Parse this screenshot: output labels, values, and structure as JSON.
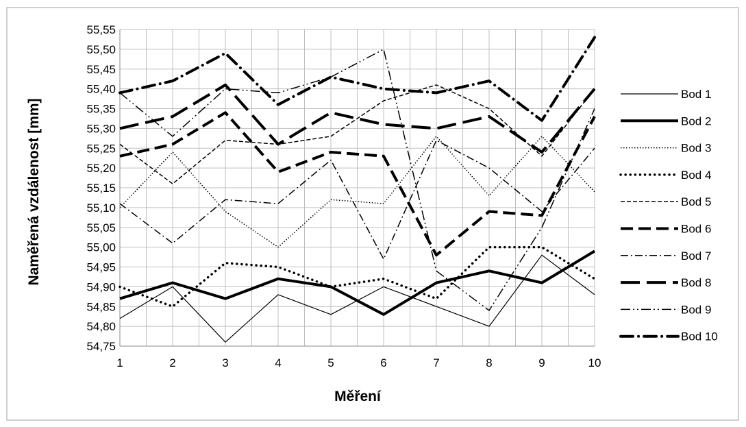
{
  "chart_data": {
    "type": "line",
    "title": "",
    "xlabel": "Měření",
    "ylabel": "Naměřená vzdálenost [mm]",
    "x": [
      1,
      2,
      3,
      4,
      5,
      6,
      7,
      8,
      9,
      10
    ],
    "ylim": [
      54.75,
      55.55
    ],
    "ytick_step": 0.05,
    "ytick_labels": [
      "54,75",
      "54,80",
      "54,85",
      "54,90",
      "54,95",
      "55,00",
      "55,05",
      "55,10",
      "55,15",
      "55,20",
      "55,25",
      "55,30",
      "55,35",
      "55,40",
      "55,45",
      "55,50",
      "55,55"
    ],
    "xtick_labels": [
      "1",
      "2",
      "3",
      "4",
      "5",
      "6",
      "7",
      "8",
      "9",
      "10"
    ],
    "grid": true,
    "legend_position": "right",
    "series": [
      {
        "name": "Bod 1",
        "values": [
          54.82,
          54.9,
          54.76,
          54.88,
          54.83,
          54.9,
          54.85,
          54.8,
          54.98,
          54.88
        ]
      },
      {
        "name": "Bod 2",
        "values": [
          54.87,
          54.91,
          54.87,
          54.92,
          54.9,
          54.83,
          54.91,
          54.94,
          54.91,
          54.99
        ]
      },
      {
        "name": "Bod 3",
        "values": [
          55.1,
          55.24,
          55.09,
          55.0,
          55.12,
          55.11,
          55.28,
          55.13,
          55.28,
          55.14
        ]
      },
      {
        "name": "Bod 4",
        "values": [
          54.9,
          54.85,
          54.96,
          54.95,
          54.9,
          54.92,
          54.87,
          55.0,
          55.0,
          54.92
        ]
      },
      {
        "name": "Bod 5",
        "values": [
          55.26,
          55.16,
          55.27,
          55.26,
          55.28,
          55.37,
          55.41,
          55.35,
          55.23,
          55.4
        ]
      },
      {
        "name": "Bod 6",
        "values": [
          55.23,
          55.26,
          55.34,
          55.19,
          55.24,
          55.23,
          54.98,
          55.09,
          55.08,
          55.33
        ]
      },
      {
        "name": "Bod 7",
        "values": [
          55.11,
          55.01,
          55.12,
          55.11,
          55.22,
          54.97,
          55.27,
          55.2,
          55.09,
          55.25
        ]
      },
      {
        "name": "Bod 8",
        "values": [
          55.3,
          55.33,
          55.41,
          55.26,
          55.34,
          55.31,
          55.3,
          55.33,
          55.24,
          55.4
        ]
      },
      {
        "name": "Bod 9",
        "values": [
          55.39,
          55.28,
          55.4,
          55.39,
          55.43,
          55.5,
          54.94,
          54.84,
          55.05,
          55.35
        ]
      },
      {
        "name": "Bod 10",
        "values": [
          55.39,
          55.42,
          55.49,
          55.36,
          55.43,
          55.4,
          55.39,
          55.42,
          55.32,
          55.53
        ]
      }
    ]
  }
}
